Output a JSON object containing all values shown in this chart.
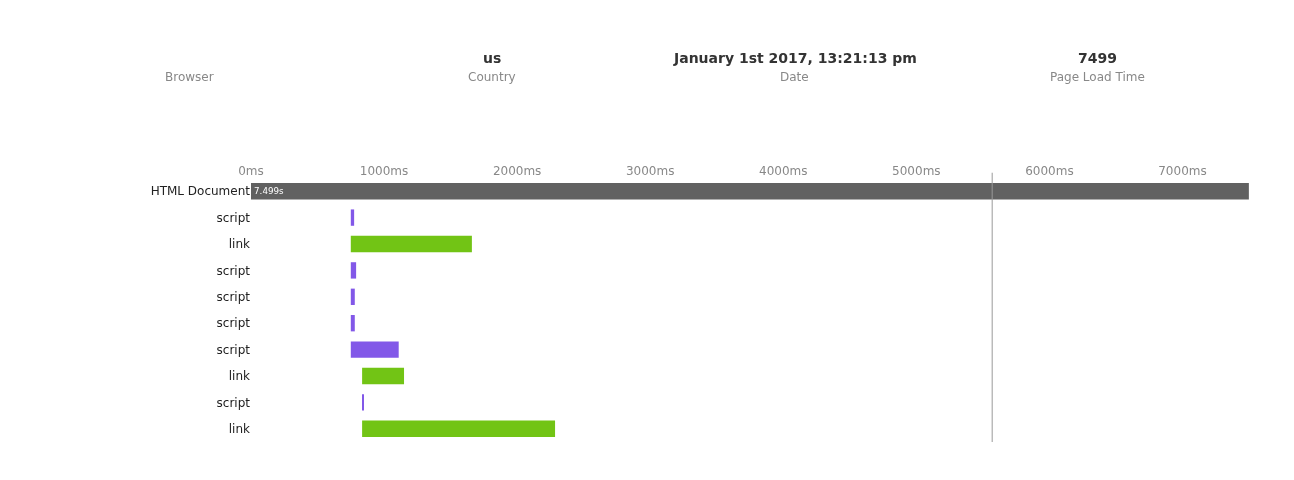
{
  "chart_data": [
    {
      "type": "other",
      "categories": [
        "Browser",
        "Country",
        "Date",
        "Page Load Time"
      ],
      "value_labels": [
        null,
        "us",
        "January 1st 2017, 13:21:13 pm",
        "7499"
      ]
    },
    {
      "type": "bar",
      "orientation": "horizontal",
      "categories": [
        "HTML Document",
        "script",
        "link",
        "script",
        "script",
        "script",
        "script",
        "link",
        "script",
        "link"
      ],
      "base": [
        0,
        750,
        750,
        750,
        750,
        750,
        750,
        835,
        835,
        835
      ],
      "values": [
        7499,
        25,
        910,
        40,
        30,
        30,
        360,
        315,
        8,
        1450
      ],
      "colors": [
        "#616161",
        "#8258e8",
        "#72c415",
        "#8258e8",
        "#8258e8",
        "#8258e8",
        "#8258e8",
        "#72c415",
        "#8258e8",
        "#72c415"
      ],
      "value_labels": [
        "7.499s",
        null,
        null,
        null,
        null,
        null,
        null,
        null,
        null,
        null
      ],
      "xlim": [
        0,
        7500
      ],
      "xticks": [
        {
          "value": 0,
          "label": "0ms"
        },
        {
          "value": 1000,
          "label": "1000ms"
        },
        {
          "value": 2000,
          "label": "2000ms"
        },
        {
          "value": 3000,
          "label": "3000ms"
        },
        {
          "value": 4000,
          "label": "4000ms"
        },
        {
          "value": 5000,
          "label": "5000ms"
        },
        {
          "value": 6000,
          "label": "6000ms"
        },
        {
          "value": 7000,
          "label": "7000ms"
        }
      ],
      "ref_lines": [
        {
          "axis": "x",
          "value": 5570,
          "color": "#999999"
        }
      ]
    }
  ]
}
